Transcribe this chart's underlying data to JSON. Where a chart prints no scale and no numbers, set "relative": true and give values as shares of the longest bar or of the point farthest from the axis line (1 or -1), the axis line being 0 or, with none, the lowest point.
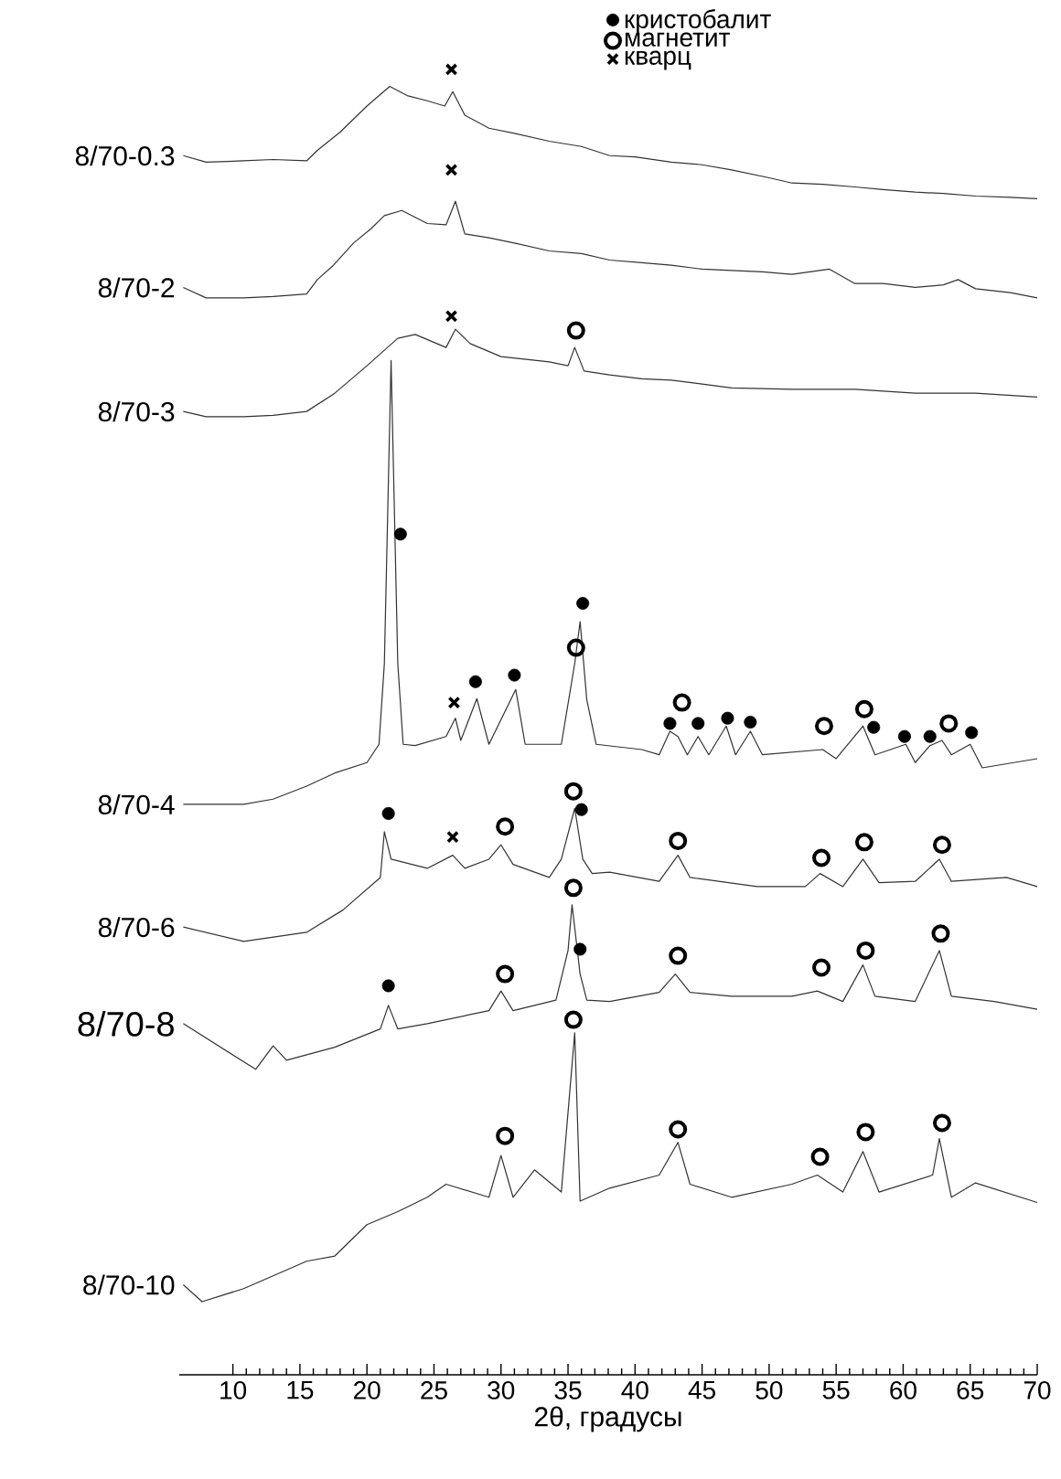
{
  "chart_data": {
    "type": "line",
    "relative": true,
    "xlabel": "2θ, градусы",
    "xlim": [
      6,
      70
    ],
    "xticks": [
      10,
      15,
      20,
      25,
      30,
      35,
      40,
      45,
      50,
      55,
      60,
      65,
      70
    ],
    "legend": "top right",
    "marker": "none",
    "line_style": "solid",
    "series": [
      {
        "name": "8/70-0.3",
        "color": "#333333",
        "x": [
          6.3,
          8,
          10.8,
          13,
          15.5,
          16.3,
          18,
          20,
          21.7,
          23,
          24.5,
          25.8,
          26.4,
          27.3,
          29.1,
          31,
          33.6,
          36,
          38.1,
          40,
          42.7,
          45,
          47.2,
          50,
          51.7,
          54,
          56.4,
          58.5,
          60.9,
          63,
          65.4,
          68,
          70
        ],
        "values": [
          0.934,
          0.929,
          0.93,
          0.931,
          0.93,
          0.938,
          0.952,
          0.972,
          0.987,
          0.98,
          0.976,
          0.972,
          0.983,
          0.965,
          0.955,
          0.951,
          0.945,
          0.941,
          0.934,
          0.933,
          0.929,
          0.927,
          0.923,
          0.917,
          0.913,
          0.912,
          0.91,
          0.908,
          0.906,
          0.905,
          0.903,
          0.902,
          0.901
        ]
      },
      {
        "name": "8/70-2",
        "color": "#333333",
        "x": [
          6.3,
          8,
          10.8,
          13,
          15.5,
          16.3,
          17.5,
          19,
          20.3,
          21.3,
          22.6,
          24.5,
          25.9,
          26.6,
          27.3,
          29.1,
          31,
          33.6,
          36,
          38.1,
          40.5,
          42.7,
          45,
          47.2,
          49.5,
          51.7,
          54.5,
          56.4,
          58.5,
          60.9,
          63,
          64.1,
          65.4,
          68,
          70
        ],
        "values": [
          0.833,
          0.825,
          0.825,
          0.826,
          0.828,
          0.839,
          0.85,
          0.867,
          0.878,
          0.888,
          0.892,
          0.882,
          0.881,
          0.899,
          0.874,
          0.871,
          0.867,
          0.861,
          0.859,
          0.854,
          0.852,
          0.85,
          0.847,
          0.846,
          0.845,
          0.843,
          0.847,
          0.836,
          0.836,
          0.833,
          0.835,
          0.839,
          0.832,
          0.829,
          0.825
        ]
      },
      {
        "name": "8/70-3",
        "color": "#333333",
        "x": [
          6.3,
          8,
          10.8,
          13,
          15.5,
          17.6,
          20,
          22.3,
          23.6,
          25.9,
          26.6,
          27.7,
          30,
          33.6,
          35,
          35.5,
          36.2,
          38.1,
          40.5,
          42.7,
          45,
          47.2,
          51.7,
          56.4,
          60.9,
          65.4,
          70
        ],
        "values": [
          0.738,
          0.734,
          0.734,
          0.735,
          0.738,
          0.752,
          0.773,
          0.794,
          0.797,
          0.787,
          0.801,
          0.79,
          0.78,
          0.776,
          0.773,
          0.787,
          0.769,
          0.766,
          0.763,
          0.762,
          0.759,
          0.756,
          0.755,
          0.755,
          0.752,
          0.752,
          0.749
        ]
      },
      {
        "name": "8/70-4",
        "color": "#333333",
        "x": [
          6.3,
          10.8,
          13,
          15.5,
          17.6,
          20,
          20.9,
          21.3,
          21.8,
          22.3,
          22.7,
          23.6,
          25.9,
          26.6,
          27,
          28.2,
          29.1,
          31.1,
          31.8,
          34.5,
          35.5,
          35.9,
          36.4,
          37.1,
          40.5,
          41.8,
          42.6,
          43.2,
          43.9,
          44.7,
          45.5,
          46.8,
          47.5,
          48.6,
          49.5,
          54,
          55,
          57,
          57.9,
          60.2,
          60.9,
          62,
          62.9,
          63.6,
          65,
          65.9,
          70
        ],
        "values": [
          0.437,
          0.437,
          0.441,
          0.451,
          0.461,
          0.469,
          0.483,
          0.545,
          0.777,
          0.545,
          0.483,
          0.482,
          0.489,
          0.503,
          0.486,
          0.518,
          0.483,
          0.525,
          0.483,
          0.483,
          0.545,
          0.577,
          0.517,
          0.483,
          0.479,
          0.475,
          0.493,
          0.489,
          0.475,
          0.489,
          0.475,
          0.497,
          0.475,
          0.493,
          0.475,
          0.479,
          0.472,
          0.497,
          0.475,
          0.483,
          0.469,
          0.482,
          0.486,
          0.475,
          0.483,
          0.465,
          0.472
        ]
      },
      {
        "name": "8/70-6",
        "color": "#333333",
        "x": [
          6.3,
          10.8,
          15.5,
          18.2,
          21,
          21.3,
          21.8,
          24.5,
          26.4,
          27.3,
          29.1,
          30,
          30.9,
          33.6,
          34.5,
          35.5,
          36.1,
          36.8,
          38.1,
          41.8,
          43.2,
          44.1,
          49.1,
          52.7,
          53.8,
          55.5,
          57,
          58.2,
          60.9,
          62.7,
          63.6,
          67.7,
          70
        ],
        "values": [
          0.343,
          0.332,
          0.339,
          0.356,
          0.381,
          0.416,
          0.395,
          0.388,
          0.398,
          0.388,
          0.395,
          0.406,
          0.391,
          0.381,
          0.395,
          0.434,
          0.395,
          0.384,
          0.385,
          0.378,
          0.398,
          0.381,
          0.374,
          0.374,
          0.384,
          0.374,
          0.395,
          0.377,
          0.378,
          0.395,
          0.378,
          0.381,
          0.374
        ]
      },
      {
        "name": "8/70-8",
        "color": "#333333",
        "x": [
          6.3,
          11.7,
          13,
          14,
          17.6,
          21,
          21.6,
          22.3,
          24.5,
          29.1,
          30,
          30.9,
          34.1,
          35,
          35.3,
          35.9,
          36.4,
          38.1,
          41.8,
          43,
          44.1,
          47.2,
          51.7,
          53.6,
          55.5,
          57,
          57.9,
          60.9,
          62.7,
          63.6,
          66.8,
          70
        ],
        "values": [
          0.269,
          0.234,
          0.252,
          0.241,
          0.251,
          0.265,
          0.283,
          0.265,
          0.269,
          0.279,
          0.294,
          0.279,
          0.287,
          0.325,
          0.36,
          0.307,
          0.287,
          0.286,
          0.293,
          0.307,
          0.293,
          0.29,
          0.29,
          0.294,
          0.286,
          0.314,
          0.29,
          0.286,
          0.325,
          0.29,
          0.286,
          0.28
        ]
      },
      {
        "name": "8/70-10",
        "color": "#333333",
        "x": [
          6.3,
          7.7,
          10.8,
          15.5,
          17.6,
          20,
          22.3,
          24.5,
          25.9,
          29.1,
          30,
          30.9,
          32.5,
          34.5,
          35.5,
          35.9,
          38.1,
          41.8,
          43.2,
          44.1,
          47.2,
          51.7,
          53.6,
          55.5,
          57,
          58.2,
          62.2,
          62.7,
          63.6,
          65.4,
          70
        ],
        "values": [
          0.069,
          0.056,
          0.066,
          0.087,
          0.091,
          0.115,
          0.125,
          0.136,
          0.146,
          0.136,
          0.168,
          0.136,
          0.157,
          0.14,
          0.262,
          0.133,
          0.143,
          0.153,
          0.178,
          0.146,
          0.136,
          0.146,
          0.153,
          0.14,
          0.171,
          0.14,
          0.153,
          0.181,
          0.136,
          0.147,
          0.132
        ]
      },
      {
        "name": "кристобалит",
        "type": "scatter",
        "marker": "circle",
        "color": "#000000",
        "x": [
          22.5,
          36.1,
          28.1,
          31.0,
          42.6,
          44.7,
          46.9,
          48.6,
          57.8,
          60.1,
          62.0,
          65.1,
          21.6,
          36.0,
          21.6,
          35.9
        ],
        "values": [
          0.644,
          0.591,
          0.531,
          0.536,
          0.499,
          0.499,
          0.503,
          0.5,
          0.496,
          0.489,
          0.489,
          0.492,
          0.43,
          0.433,
          0.298,
          0.326
        ]
      },
      {
        "name": "магнетит",
        "type": "scatter",
        "marker": "circle-open",
        "color": "#000000",
        "x": [
          35.6,
          35.6,
          43.5,
          54.1,
          57.1,
          63.4,
          30.3,
          35.4,
          43.2,
          53.9,
          57.1,
          62.9,
          30.3,
          35.4,
          43.2,
          53.9,
          57.2,
          62.8,
          30.3,
          35.4,
          43.2,
          53.8,
          57.2,
          62.9
        ],
        "values": [
          0.8,
          0.557,
          0.515,
          0.497,
          0.51,
          0.499,
          0.42,
          0.447,
          0.409,
          0.396,
          0.408,
          0.406,
          0.307,
          0.373,
          0.321,
          0.312,
          0.325,
          0.338,
          0.183,
          0.272,
          0.188,
          0.167,
          0.186,
          0.193
        ]
      },
      {
        "name": "кварц",
        "type": "scatter",
        "marker": "cross",
        "color": "#000000",
        "x": [
          26.3,
          26.3,
          26.3,
          26.5,
          26.4
        ],
        "values": [
          1.0,
          0.923,
          0.811,
          0.515,
          0.412
        ]
      }
    ]
  }
}
